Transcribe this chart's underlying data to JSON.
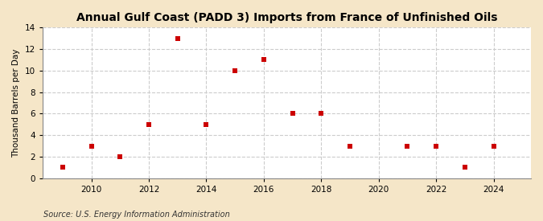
{
  "title": "Annual Gulf Coast (PADD 3) Imports from France of Unfinished Oils",
  "ylabel": "Thousand Barrels per Day",
  "source": "Source: U.S. Energy Information Administration",
  "outer_bg": "#f5e6c8",
  "plot_bg": "#ffffff",
  "years": [
    2009,
    2010,
    2011,
    2012,
    2013,
    2014,
    2015,
    2016,
    2017,
    2018,
    2019,
    2021,
    2022,
    2023,
    2024
  ],
  "values": [
    1,
    3,
    2,
    5,
    13,
    5,
    10,
    11,
    6,
    6,
    3,
    3,
    3,
    1,
    3
  ],
  "marker_color": "#cc0000",
  "marker_style": "s",
  "marker_size": 16,
  "xlim": [
    2008.3,
    2025.3
  ],
  "ylim": [
    0,
    14
  ],
  "yticks": [
    0,
    2,
    4,
    6,
    8,
    10,
    12,
    14
  ],
  "xticks": [
    2010,
    2012,
    2014,
    2016,
    2018,
    2020,
    2022,
    2024
  ],
  "grid_color": "#cccccc",
  "grid_linestyle": "--",
  "grid_linewidth": 0.8,
  "title_fontsize": 10,
  "ylabel_fontsize": 7.5,
  "tick_fontsize": 7.5,
  "source_fontsize": 7
}
